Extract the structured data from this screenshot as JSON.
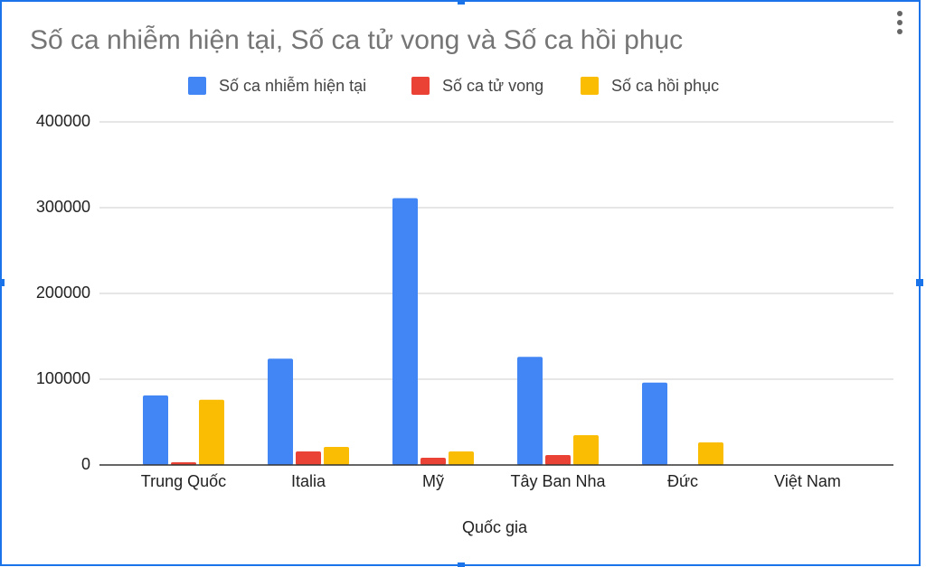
{
  "chart_data": {
    "type": "bar",
    "title": "Số ca nhiễm hiện tại, Số ca tử vong và Số ca hồi phục",
    "x_label": "Quốc gia",
    "categories": [
      "Trung Quốc",
      "Italia",
      "Mỹ",
      "Tây Ban Nha",
      "Đức",
      "Việt Nam"
    ],
    "series": [
      {
        "name": "Số ca nhiễm hiện tại",
        "color": "#4285f4",
        "values": [
          81000,
          124000,
          311000,
          126000,
          96000,
          0
        ]
      },
      {
        "name": "Số ca tử vong",
        "color": "#ea4335",
        "values": [
          3200,
          15800,
          8400,
          11600,
          0,
          0
        ]
      },
      {
        "name": "Số ca hồi phục",
        "color": "#fbbc04",
        "values": [
          76000,
          21000,
          15800,
          34700,
          26300,
          0
        ]
      }
    ],
    "ylim": [
      0,
      400000
    ],
    "yticks": [
      0,
      100000,
      200000,
      300000,
      400000
    ],
    "grid": true,
    "legend": "top"
  }
}
